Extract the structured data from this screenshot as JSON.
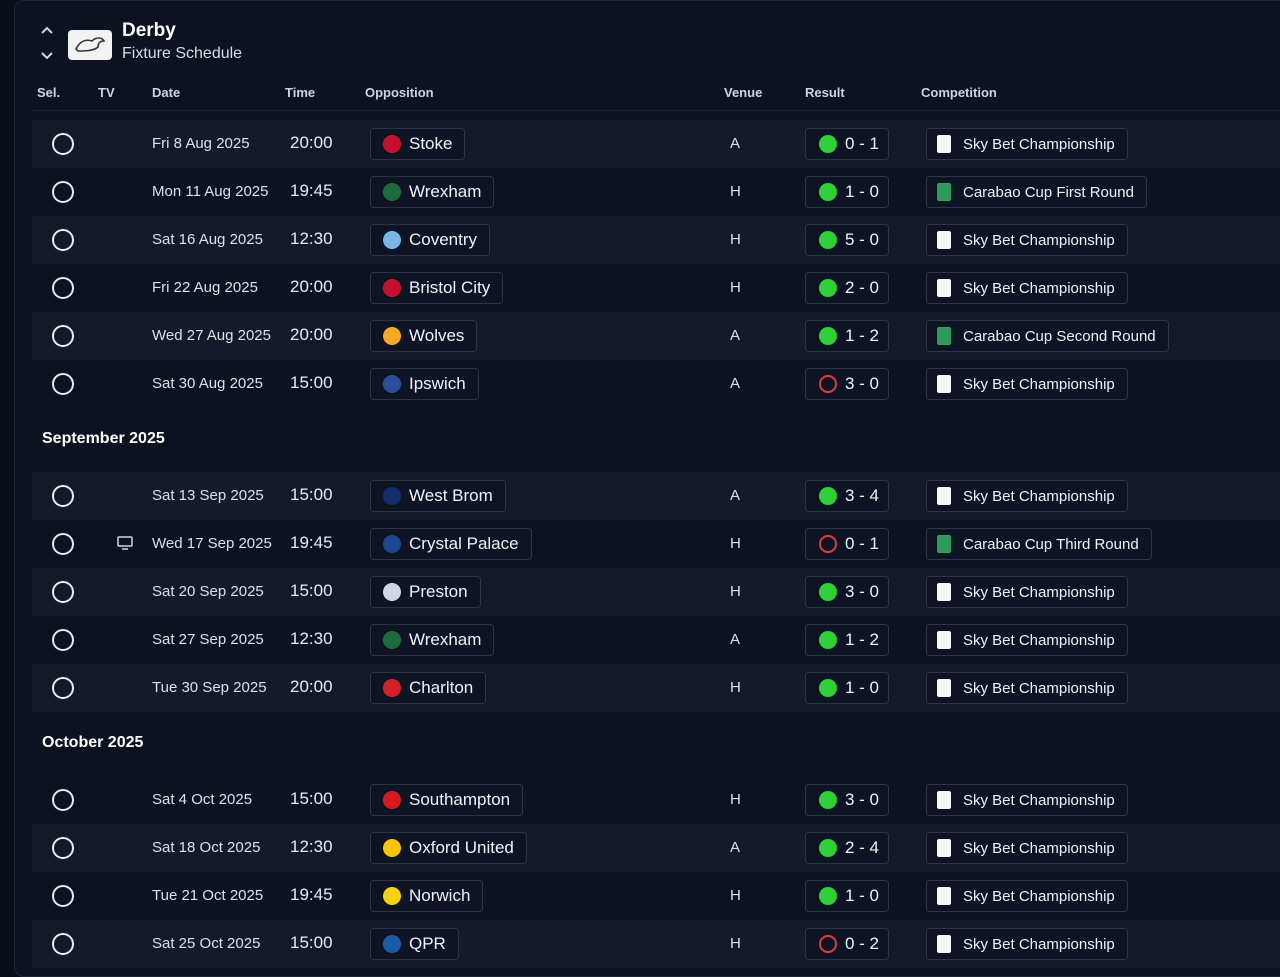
{
  "header": {
    "club_name": "Derby",
    "page_subtitle": "Fixture Schedule"
  },
  "columns": {
    "sel": "Sel.",
    "tv": "TV",
    "date": "Date",
    "time": "Time",
    "opposition": "Opposition",
    "venue": "Venue",
    "result": "Result",
    "competition": "Competition"
  },
  "months": {
    "sep": "September 2025",
    "oct": "October 2025"
  },
  "colors": {
    "win": "#2fcf3a",
    "loss": "#e23b3b",
    "background": "#0b0f1a"
  },
  "fixtures": [
    {
      "date": "Fri 8 Aug 2025",
      "time": "20:00",
      "opponent": "Stoke",
      "venue": "A",
      "result": "0 - 1",
      "outcome": "win",
      "competition": "Sky Bet Championship",
      "comp_type": "league",
      "tv": false
    },
    {
      "date": "Mon 11 Aug 2025",
      "time": "19:45",
      "opponent": "Wrexham",
      "venue": "H",
      "result": "1 - 0",
      "outcome": "win",
      "competition": "Carabao Cup First Round",
      "comp_type": "cup",
      "tv": false
    },
    {
      "date": "Sat 16 Aug 2025",
      "time": "12:30",
      "opponent": "Coventry",
      "venue": "H",
      "result": "5 - 0",
      "outcome": "win",
      "competition": "Sky Bet Championship",
      "comp_type": "league",
      "tv": false
    },
    {
      "date": "Fri 22 Aug 2025",
      "time": "20:00",
      "opponent": "Bristol City",
      "venue": "H",
      "result": "2 - 0",
      "outcome": "win",
      "competition": "Sky Bet Championship",
      "comp_type": "league",
      "tv": false
    },
    {
      "date": "Wed 27 Aug 2025",
      "time": "20:00",
      "opponent": "Wolves",
      "venue": "A",
      "result": "1 - 2",
      "outcome": "win",
      "competition": "Carabao Cup Second Round",
      "comp_type": "cup",
      "tv": false
    },
    {
      "date": "Sat 30 Aug 2025",
      "time": "15:00",
      "opponent": "Ipswich",
      "venue": "A",
      "result": "3 - 0",
      "outcome": "loss",
      "competition": "Sky Bet Championship",
      "comp_type": "league",
      "tv": false
    },
    {
      "date": "Sat 13 Sep 2025",
      "time": "15:00",
      "opponent": "West Brom",
      "venue": "A",
      "result": "3 - 4",
      "outcome": "win",
      "competition": "Sky Bet Championship",
      "comp_type": "league",
      "tv": false
    },
    {
      "date": "Wed 17 Sep 2025",
      "time": "19:45",
      "opponent": "Crystal Palace",
      "venue": "H",
      "result": "0 - 1",
      "outcome": "loss",
      "competition": "Carabao Cup Third Round",
      "comp_type": "cup",
      "tv": true
    },
    {
      "date": "Sat 20 Sep 2025",
      "time": "15:00",
      "opponent": "Preston",
      "venue": "H",
      "result": "3 - 0",
      "outcome": "win",
      "competition": "Sky Bet Championship",
      "comp_type": "league",
      "tv": false
    },
    {
      "date": "Sat 27 Sep 2025",
      "time": "12:30",
      "opponent": "Wrexham",
      "venue": "A",
      "result": "1 - 2",
      "outcome": "win",
      "competition": "Sky Bet Championship",
      "comp_type": "league",
      "tv": false
    },
    {
      "date": "Tue 30 Sep 2025",
      "time": "20:00",
      "opponent": "Charlton",
      "venue": "H",
      "result": "1 - 0",
      "outcome": "win",
      "competition": "Sky Bet Championship",
      "comp_type": "league",
      "tv": false
    },
    {
      "date": "Sat 4 Oct 2025",
      "time": "15:00",
      "opponent": "Southampton",
      "venue": "H",
      "result": "3 - 0",
      "outcome": "win",
      "competition": "Sky Bet Championship",
      "comp_type": "league",
      "tv": false
    },
    {
      "date": "Sat 18 Oct 2025",
      "time": "12:30",
      "opponent": "Oxford United",
      "venue": "A",
      "result": "2 - 4",
      "outcome": "win",
      "competition": "Sky Bet Championship",
      "comp_type": "league",
      "tv": false
    },
    {
      "date": "Tue 21 Oct 2025",
      "time": "19:45",
      "opponent": "Norwich",
      "venue": "H",
      "result": "1 - 0",
      "outcome": "win",
      "competition": "Sky Bet Championship",
      "comp_type": "league",
      "tv": false
    },
    {
      "date": "Sat 25 Oct 2025",
      "time": "15:00",
      "opponent": "QPR",
      "venue": "H",
      "result": "0 - 2",
      "outcome": "loss",
      "competition": "Sky Bet Championship",
      "comp_type": "league",
      "tv": false
    }
  ]
}
